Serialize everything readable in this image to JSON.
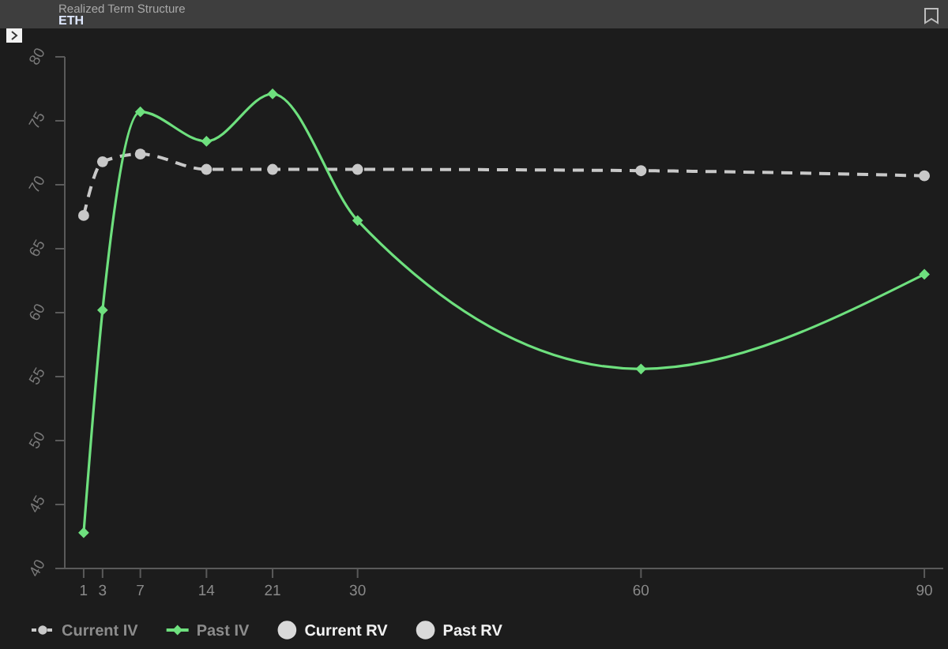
{
  "chart_data": {
    "type": "line",
    "title": "Realized Term Structure",
    "subtitle": "ETH",
    "x": [
      1,
      3,
      7,
      14,
      21,
      30,
      60,
      90
    ],
    "xlim": [
      -1,
      92
    ],
    "xticks": [
      1,
      3,
      7,
      14,
      21,
      30,
      60,
      90
    ],
    "ylim": [
      40,
      80
    ],
    "yticks": [
      40,
      45,
      50,
      55,
      60,
      65,
      70,
      75,
      80
    ],
    "grid": false,
    "legend": "bottom",
    "series": [
      {
        "name": "Current IV",
        "color": "#c8c8c8",
        "marker": "circle",
        "line_style": "dashed",
        "values": [
          67.6,
          71.8,
          72.4,
          71.2,
          71.2,
          71.2,
          71.1,
          70.7
        ]
      },
      {
        "name": "Past IV",
        "color": "#6ee07e",
        "marker": "diamond",
        "line_style": "solid",
        "values": [
          42.8,
          60.2,
          75.7,
          73.4,
          77.1,
          67.2,
          55.6,
          63.0
        ]
      },
      {
        "name": "Current RV",
        "type": "scatter",
        "color": "#d9d9d9",
        "marker": "circle",
        "values": [
          null,
          null,
          null,
          null,
          null,
          null,
          null,
          null
        ]
      },
      {
        "name": "Past RV",
        "type": "scatter",
        "color": "#d9d9d9",
        "marker": "circle",
        "values": [
          null,
          null,
          null,
          null,
          null,
          null,
          null,
          null
        ]
      }
    ]
  }
}
